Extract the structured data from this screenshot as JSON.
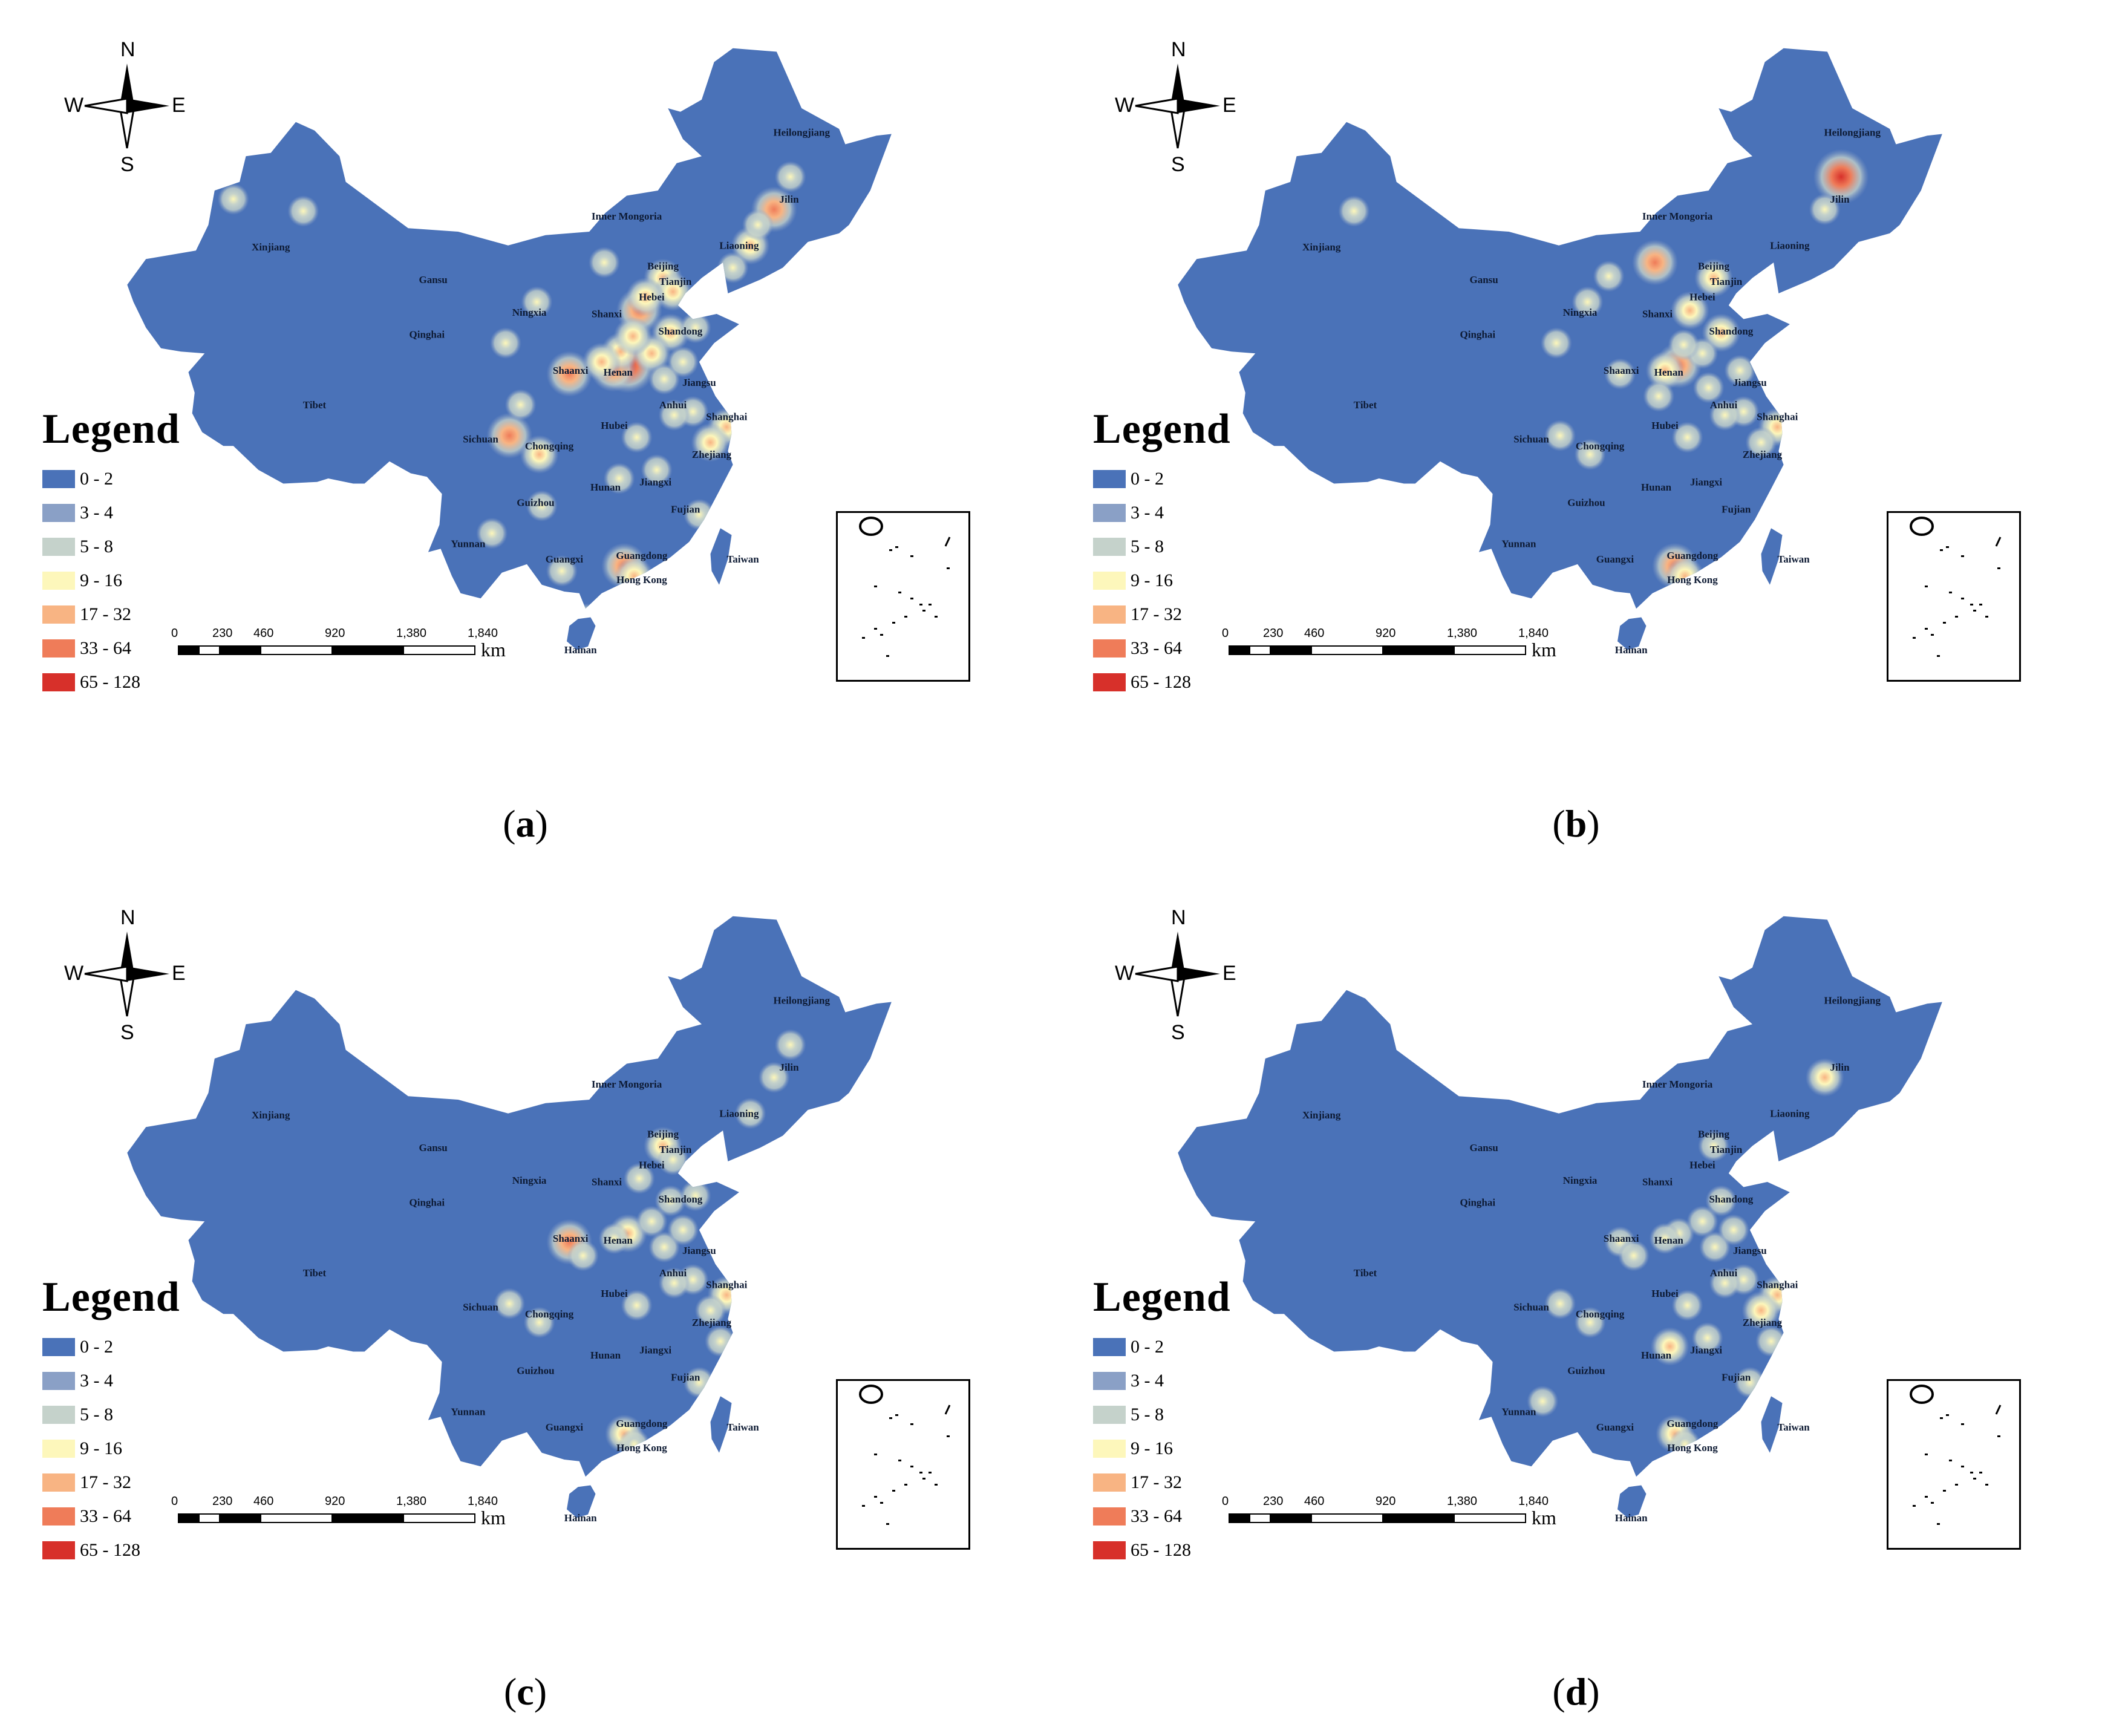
{
  "legend": {
    "title": "Legend",
    "classes": [
      {
        "label": "0 - 2",
        "color": "#4a72b8"
      },
      {
        "label": "3 - 4",
        "color": "#8aa0c6"
      },
      {
        "label": "5 - 8",
        "color": "#c5d2cb"
      },
      {
        "label": "9 - 16",
        "color": "#fdf7bb"
      },
      {
        "label": "17 - 32",
        "color": "#f8b483"
      },
      {
        "label": "33 - 64",
        "color": "#ef7c59"
      },
      {
        "label": "65 - 128",
        "color": "#d7302a"
      }
    ]
  },
  "compass": {
    "n": "N",
    "s": "S",
    "e": "E",
    "w": "W"
  },
  "scale": {
    "ticks": [
      "0",
      "230",
      "460",
      "920",
      "1,380",
      "1,840"
    ],
    "unit": "km"
  },
  "provinces": [
    "Heilongjiang",
    "Jilin",
    "Liaoning",
    "Inner Mongoria",
    "Xinjiang",
    "Gansu",
    "Beijing",
    "Tianjin",
    "Hebei",
    "Ningxia",
    "Shanxi",
    "Shandong",
    "Qinghai",
    "Shaanxi",
    "Henan",
    "Jiangsu",
    "Tibet",
    "Anhui",
    "Shanghai",
    "Hubei",
    "Sichuan",
    "Chongqing",
    "Zhejiang",
    "Jiangxi",
    "Hunan",
    "Guizhou",
    "Fujian",
    "Yunnan",
    "Taiwan",
    "Guangxi",
    "Guangdong",
    "Hong Kong",
    "Hainan"
  ],
  "panels": [
    {
      "caption": "a",
      "hotspots": [
        {
          "lon": 113.6,
          "lat": 34.8,
          "level": 6
        },
        {
          "lon": 112.4,
          "lat": 34.6,
          "level": 5
        },
        {
          "lon": 113.0,
          "lat": 35.6,
          "level": 4
        },
        {
          "lon": 114.5,
          "lat": 38.0,
          "level": 5
        },
        {
          "lon": 116.4,
          "lat": 39.9,
          "level": 4
        },
        {
          "lon": 117.2,
          "lat": 39.1,
          "level": 4
        },
        {
          "lon": 108.9,
          "lat": 34.3,
          "level": 5
        },
        {
          "lon": 104.1,
          "lat": 30.7,
          "level": 5
        },
        {
          "lon": 106.5,
          "lat": 29.6,
          "level": 4
        },
        {
          "lon": 113.3,
          "lat": 23.1,
          "level": 5
        },
        {
          "lon": 114.1,
          "lat": 22.5,
          "level": 4
        },
        {
          "lon": 125.3,
          "lat": 43.9,
          "level": 5
        },
        {
          "lon": 123.4,
          "lat": 41.8,
          "level": 4
        },
        {
          "lon": 126.6,
          "lat": 45.8,
          "level": 3
        },
        {
          "lon": 117.0,
          "lat": 36.7,
          "level": 4
        },
        {
          "lon": 118.8,
          "lat": 32.1,
          "level": 3
        },
        {
          "lon": 121.5,
          "lat": 31.2,
          "level": 4
        },
        {
          "lon": 120.2,
          "lat": 30.3,
          "level": 4
        },
        {
          "lon": 117.3,
          "lat": 31.9,
          "level": 3
        },
        {
          "lon": 114.3,
          "lat": 30.6,
          "level": 3
        },
        {
          "lon": 112.9,
          "lat": 28.2,
          "level": 3
        },
        {
          "lon": 115.9,
          "lat": 28.7,
          "level": 3
        },
        {
          "lon": 108.3,
          "lat": 22.8,
          "level": 3
        },
        {
          "lon": 106.7,
          "lat": 26.6,
          "level": 3
        },
        {
          "lon": 102.7,
          "lat": 25.0,
          "level": 3
        },
        {
          "lon": 111.7,
          "lat": 40.8,
          "level": 3
        },
        {
          "lon": 87.6,
          "lat": 43.8,
          "level": 3
        },
        {
          "lon": 103.8,
          "lat": 36.1,
          "level": 3
        },
        {
          "lon": 119.3,
          "lat": 26.1,
          "level": 3
        },
        {
          "lon": 110.3,
          "lat": 20.0,
          "level": 3
        },
        {
          "lon": 115.5,
          "lat": 35.5,
          "level": 4
        },
        {
          "lon": 114.0,
          "lat": 36.5,
          "level": 4
        },
        {
          "lon": 111.5,
          "lat": 35.0,
          "level": 4
        },
        {
          "lon": 116.5,
          "lat": 34.0,
          "level": 3
        },
        {
          "lon": 118.0,
          "lat": 35.0,
          "level": 3
        },
        {
          "lon": 119.0,
          "lat": 37.0,
          "level": 3
        },
        {
          "lon": 115.0,
          "lat": 38.8,
          "level": 4
        },
        {
          "lon": 122.0,
          "lat": 40.5,
          "level": 3
        },
        {
          "lon": 124.0,
          "lat": 43.0,
          "level": 3
        },
        {
          "lon": 82.0,
          "lat": 44.5,
          "level": 3
        },
        {
          "lon": 106.3,
          "lat": 38.5,
          "level": 3
        },
        {
          "lon": 105.0,
          "lat": 32.5,
          "level": 3
        }
      ]
    },
    {
      "caption": "b",
      "hotspots": [
        {
          "lon": 126.6,
          "lat": 45.8,
          "level": 6
        },
        {
          "lon": 125.3,
          "lat": 43.9,
          "level": 3
        },
        {
          "lon": 113.6,
          "lat": 34.8,
          "level": 5
        },
        {
          "lon": 112.5,
          "lat": 34.5,
          "level": 4
        },
        {
          "lon": 114.5,
          "lat": 38.0,
          "level": 4
        },
        {
          "lon": 116.4,
          "lat": 39.9,
          "level": 4
        },
        {
          "lon": 111.7,
          "lat": 40.8,
          "level": 5
        },
        {
          "lon": 108.9,
          "lat": 34.3,
          "level": 3
        },
        {
          "lon": 113.3,
          "lat": 23.1,
          "level": 5
        },
        {
          "lon": 114.1,
          "lat": 22.5,
          "level": 4
        },
        {
          "lon": 117.0,
          "lat": 36.7,
          "level": 4
        },
        {
          "lon": 118.8,
          "lat": 32.1,
          "level": 3
        },
        {
          "lon": 121.5,
          "lat": 31.2,
          "level": 4
        },
        {
          "lon": 120.2,
          "lat": 30.3,
          "level": 3
        },
        {
          "lon": 117.3,
          "lat": 31.9,
          "level": 3
        },
        {
          "lon": 114.3,
          "lat": 30.6,
          "level": 3
        },
        {
          "lon": 104.1,
          "lat": 30.7,
          "level": 3
        },
        {
          "lon": 106.5,
          "lat": 29.6,
          "level": 3
        },
        {
          "lon": 87.6,
          "lat": 43.8,
          "level": 3
        },
        {
          "lon": 103.8,
          "lat": 36.1,
          "level": 3
        },
        {
          "lon": 115.5,
          "lat": 35.5,
          "level": 3
        },
        {
          "lon": 116.0,
          "lat": 33.5,
          "level": 3
        },
        {
          "lon": 118.5,
          "lat": 34.5,
          "level": 3
        },
        {
          "lon": 114.0,
          "lat": 36.0,
          "level": 3
        },
        {
          "lon": 112.0,
          "lat": 33.0,
          "level": 3
        },
        {
          "lon": 108.0,
          "lat": 40.0,
          "level": 3
        },
        {
          "lon": 106.3,
          "lat": 38.5,
          "level": 3
        }
      ]
    },
    {
      "caption": "c",
      "hotspots": [
        {
          "lon": 108.9,
          "lat": 34.3,
          "level": 5
        },
        {
          "lon": 113.6,
          "lat": 34.8,
          "level": 4
        },
        {
          "lon": 116.4,
          "lat": 39.9,
          "level": 4
        },
        {
          "lon": 117.2,
          "lat": 39.1,
          "level": 3
        },
        {
          "lon": 117.0,
          "lat": 36.7,
          "level": 3
        },
        {
          "lon": 118.8,
          "lat": 32.1,
          "level": 3
        },
        {
          "lon": 121.5,
          "lat": 31.2,
          "level": 4
        },
        {
          "lon": 120.2,
          "lat": 30.3,
          "level": 3
        },
        {
          "lon": 117.3,
          "lat": 31.9,
          "level": 3
        },
        {
          "lon": 114.3,
          "lat": 30.6,
          "level": 3
        },
        {
          "lon": 104.1,
          "lat": 30.7,
          "level": 3
        },
        {
          "lon": 106.5,
          "lat": 29.6,
          "level": 3
        },
        {
          "lon": 113.3,
          "lat": 23.1,
          "level": 4
        },
        {
          "lon": 114.1,
          "lat": 22.5,
          "level": 3
        },
        {
          "lon": 125.3,
          "lat": 43.9,
          "level": 3
        },
        {
          "lon": 126.6,
          "lat": 45.8,
          "level": 3
        },
        {
          "lon": 123.4,
          "lat": 41.8,
          "level": 3
        },
        {
          "lon": 115.5,
          "lat": 35.5,
          "level": 3
        },
        {
          "lon": 116.5,
          "lat": 34.0,
          "level": 3
        },
        {
          "lon": 118.0,
          "lat": 35.0,
          "level": 3
        },
        {
          "lon": 119.0,
          "lat": 37.0,
          "level": 3
        },
        {
          "lon": 112.5,
          "lat": 34.5,
          "level": 3
        },
        {
          "lon": 121.0,
          "lat": 28.5,
          "level": 3
        },
        {
          "lon": 119.3,
          "lat": 26.1,
          "level": 3
        },
        {
          "lon": 114.5,
          "lat": 38.0,
          "level": 3
        },
        {
          "lon": 110.0,
          "lat": 33.5,
          "level": 3
        }
      ]
    },
    {
      "caption": "d",
      "hotspots": [
        {
          "lon": 125.3,
          "lat": 43.9,
          "level": 4
        },
        {
          "lon": 113.6,
          "lat": 34.8,
          "level": 3
        },
        {
          "lon": 116.4,
          "lat": 39.9,
          "level": 3
        },
        {
          "lon": 117.0,
          "lat": 36.7,
          "level": 3
        },
        {
          "lon": 118.8,
          "lat": 32.1,
          "level": 3
        },
        {
          "lon": 121.5,
          "lat": 31.2,
          "level": 4
        },
        {
          "lon": 120.2,
          "lat": 30.3,
          "level": 4
        },
        {
          "lon": 117.3,
          "lat": 31.9,
          "level": 3
        },
        {
          "lon": 114.3,
          "lat": 30.6,
          "level": 3
        },
        {
          "lon": 112.9,
          "lat": 28.2,
          "level": 4
        },
        {
          "lon": 115.9,
          "lat": 28.7,
          "level": 3
        },
        {
          "lon": 104.1,
          "lat": 30.7,
          "level": 3
        },
        {
          "lon": 106.5,
          "lat": 29.6,
          "level": 3
        },
        {
          "lon": 113.3,
          "lat": 23.1,
          "level": 4
        },
        {
          "lon": 114.1,
          "lat": 22.5,
          "level": 3
        },
        {
          "lon": 102.7,
          "lat": 25.0,
          "level": 3
        },
        {
          "lon": 108.9,
          "lat": 34.3,
          "level": 3
        },
        {
          "lon": 115.5,
          "lat": 35.5,
          "level": 3
        },
        {
          "lon": 116.5,
          "lat": 34.0,
          "level": 3
        },
        {
          "lon": 118.0,
          "lat": 35.0,
          "level": 3
        },
        {
          "lon": 119.3,
          "lat": 26.1,
          "level": 3
        },
        {
          "lon": 121.0,
          "lat": 28.5,
          "level": 3
        },
        {
          "lon": 110.0,
          "lat": 33.5,
          "level": 3
        },
        {
          "lon": 112.5,
          "lat": 34.5,
          "level": 3
        }
      ]
    }
  ]
}
